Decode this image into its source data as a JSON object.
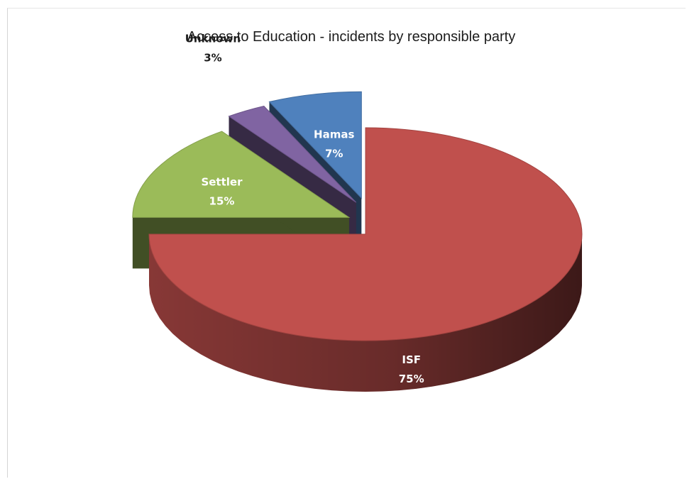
{
  "chart_data": {
    "type": "pie",
    "title": "Access to Education - incidents by responsible party",
    "slices": [
      {
        "label": "ISF",
        "value": 75,
        "value_label": "75%",
        "color": "#c0504d"
      },
      {
        "label": "Settler",
        "value": 15,
        "value_label": "15%",
        "color": "#9bbb59"
      },
      {
        "label": "Unknown",
        "value": 3,
        "value_label": "3%",
        "color": "#8064a2"
      },
      {
        "label": "Hamas",
        "value": 7,
        "value_label": "7%",
        "color": "#4f81bd"
      }
    ],
    "style": "3d-exploded"
  }
}
